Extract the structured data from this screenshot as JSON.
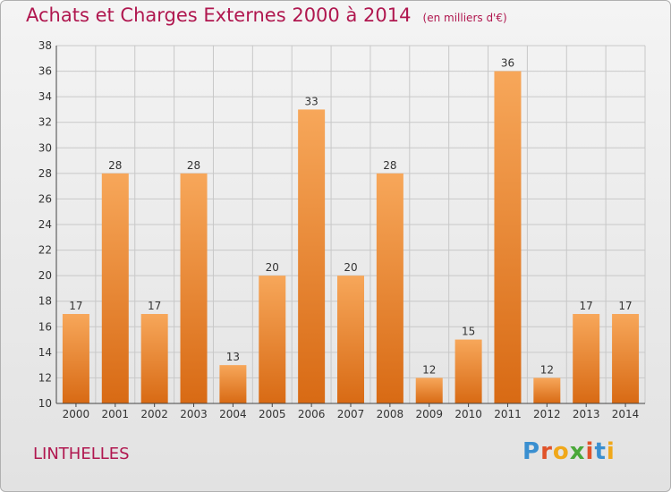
{
  "header": {
    "title": "Achats et Charges Externes 2000 à 2014",
    "unit": "(en milliers d'€)"
  },
  "footer": {
    "commune": "LINTHELLES",
    "brand": "Proxiti"
  },
  "colors": {
    "title": "#b0174f",
    "bar_light": "#f7a75a",
    "bar_dark": "#d86a14",
    "grid": "#c8c8c8"
  },
  "chart_data": {
    "type": "bar",
    "categories": [
      "2000",
      "2001",
      "2002",
      "2003",
      "2004",
      "2005",
      "2006",
      "2007",
      "2008",
      "2009",
      "2010",
      "2011",
      "2012",
      "2013",
      "2014"
    ],
    "values": [
      17,
      28,
      17,
      28,
      13,
      20,
      33,
      20,
      28,
      12,
      15,
      36,
      12,
      17,
      17
    ],
    "ylim": [
      10,
      38
    ],
    "yticks": [
      10,
      12,
      14,
      16,
      18,
      20,
      22,
      24,
      26,
      28,
      30,
      32,
      34,
      36,
      38
    ],
    "grid": true,
    "data_labels": true
  }
}
